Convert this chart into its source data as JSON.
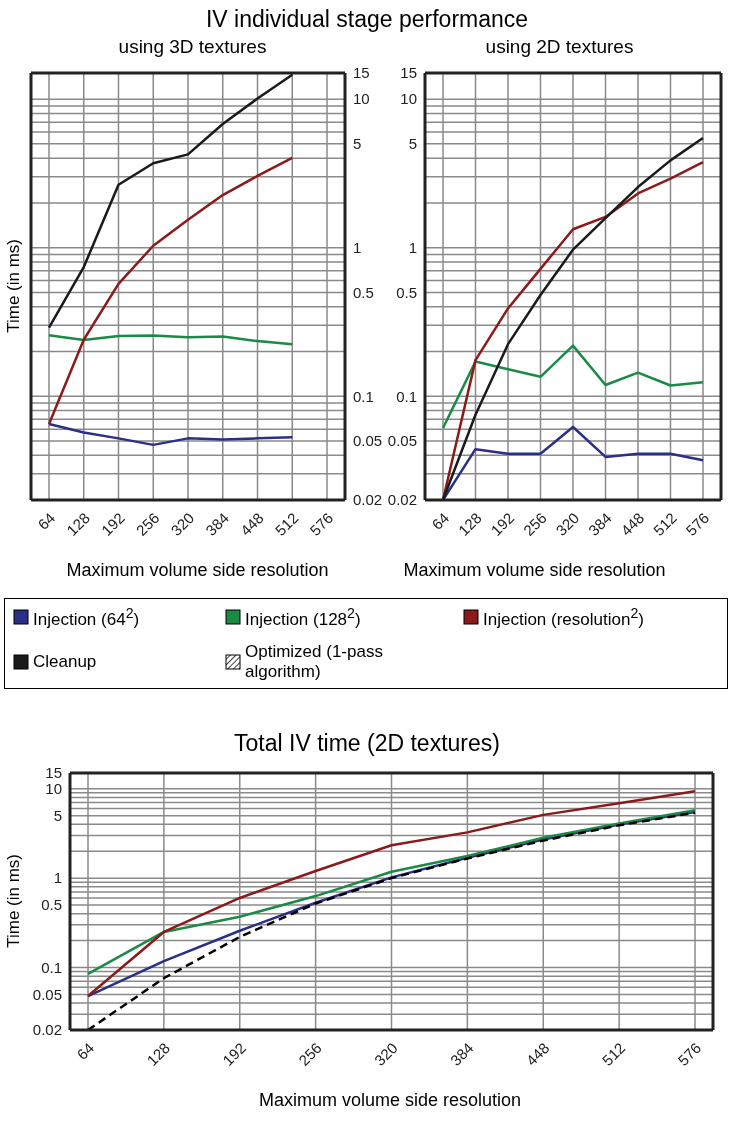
{
  "chart_data": [
    {
      "type": "line",
      "title": "IV individual stage performance",
      "subtitle": "using 3D textures",
      "xlabel": "Maximum volume side resolution",
      "ylabel": "Time (in ms)",
      "log": "y",
      "grid": true,
      "legend": "bottom",
      "categories": [
        "64",
        "128",
        "192",
        "256",
        "320",
        "384",
        "448",
        "512",
        "576"
      ],
      "ylim": [
        0.02,
        15
      ],
      "yticks": [
        0.02,
        {
          "value": 0.03,
          "label": null
        },
        {
          "value": 0.04,
          "label": null
        },
        0.05,
        {
          "value": 0.06,
          "label": null
        },
        {
          "value": 0.07,
          "label": null
        },
        {
          "value": 0.08,
          "label": null
        },
        {
          "value": 0.09,
          "label": null
        },
        0.1,
        {
          "value": 0.2,
          "label": null
        },
        {
          "value": 0.3,
          "label": null
        },
        {
          "value": 0.4,
          "label": null
        },
        0.5,
        {
          "value": 0.6,
          "label": null
        },
        {
          "value": 0.7,
          "label": null
        },
        {
          "value": 0.8,
          "label": null
        },
        {
          "value": 0.9,
          "label": null
        },
        1,
        {
          "value": 2,
          "label": null
        },
        {
          "value": 3,
          "label": null
        },
        {
          "value": 4,
          "label": null
        },
        5,
        {
          "value": 6,
          "label": null
        },
        {
          "value": 7,
          "label": null
        },
        {
          "value": 8,
          "label": null
        },
        {
          "value": 9,
          "label": null
        },
        10,
        15
      ],
      "series": [
        {
          "name": "Injection (64$^{2}$)",
          "color": "#2b2f86",
          "values": [
            0.065,
            0.057,
            0.052,
            0.047,
            0.052,
            0.051,
            0.052,
            0.053,
            null
          ]
        },
        {
          "name": "Injection (128$^{2}$)",
          "color": "#1a8a45",
          "values": [
            0.257,
            0.239,
            0.254,
            0.256,
            0.249,
            0.252,
            0.235,
            0.224,
            null
          ]
        },
        {
          "name": "Injection (resolution$^{2}$)",
          "color": "#8b1a1a",
          "values": [
            0.065,
            0.24,
            0.57,
            1.03,
            1.54,
            2.26,
            3.04,
            4.03,
            null
          ]
        },
        {
          "name": "Cleanup",
          "color": "#1a1a1a",
          "values": [
            0.29,
            0.74,
            2.65,
            3.7,
            4.25,
            6.8,
            10.1,
            14.6,
            null
          ]
        }
      ]
    },
    {
      "type": "line",
      "subtitle": "using 2D textures",
      "xlabel": "Maximum volume side resolution",
      "log": "y",
      "grid": true,
      "categories": [
        "64",
        "128",
        "192",
        "256",
        "320",
        "384",
        "448",
        "512",
        "576"
      ],
      "ylim": [
        0.02,
        15
      ],
      "yticks": [
        0.02,
        {
          "value": 0.03,
          "label": null
        },
        {
          "value": 0.04,
          "label": null
        },
        0.05,
        {
          "value": 0.06,
          "label": null
        },
        {
          "value": 0.07,
          "label": null
        },
        {
          "value": 0.08,
          "label": null
        },
        {
          "value": 0.09,
          "label": null
        },
        0.1,
        {
          "value": 0.2,
          "label": null
        },
        {
          "value": 0.3,
          "label": null
        },
        {
          "value": 0.4,
          "label": null
        },
        0.5,
        {
          "value": 0.6,
          "label": null
        },
        {
          "value": 0.7,
          "label": null
        },
        {
          "value": 0.8,
          "label": null
        },
        {
          "value": 0.9,
          "label": null
        },
        1,
        {
          "value": 2,
          "label": null
        },
        {
          "value": 3,
          "label": null
        },
        {
          "value": 4,
          "label": null
        },
        5,
        {
          "value": 6,
          "label": null
        },
        {
          "value": 7,
          "label": null
        },
        {
          "value": 8,
          "label": null
        },
        {
          "value": 9,
          "label": null
        },
        10,
        15
      ],
      "series": [
        {
          "name": "Injection (64$^{2}$)",
          "color": "#2b2f86",
          "values": [
            0.02,
            0.044,
            0.041,
            0.041,
            0.062,
            0.039,
            0.041,
            0.041,
            0.037
          ]
        },
        {
          "name": "Injection (128$^{2}$)",
          "color": "#1a8a45",
          "values": [
            0.061,
            0.171,
            0.152,
            0.135,
            0.219,
            0.119,
            0.144,
            0.118,
            0.124
          ]
        },
        {
          "name": "Injection (resolution$^{2}$)",
          "color": "#8b1a1a",
          "values": [
            0.02,
            0.175,
            0.39,
            0.72,
            1.33,
            1.61,
            2.32,
            2.92,
            3.77
          ]
        },
        {
          "name": "Cleanup",
          "color": "#1a1a1a",
          "values": [
            0.02,
            0.075,
            0.224,
            0.48,
            0.97,
            1.58,
            2.56,
            3.87,
            5.47
          ]
        }
      ]
    },
    {
      "type": "line",
      "title": "Total IV time (2D textures)",
      "xlabel": "Maximum volume side resolution",
      "ylabel": "Time (in ms)",
      "log": "y",
      "grid": true,
      "categories": [
        "64",
        "128",
        "192",
        "256",
        "320",
        "384",
        "448",
        "512",
        "576"
      ],
      "ylim": [
        0.02,
        15
      ],
      "yticks": [
        0.02,
        {
          "value": 0.03,
          "label": null
        },
        {
          "value": 0.04,
          "label": null
        },
        0.05,
        {
          "value": 0.06,
          "label": null
        },
        {
          "value": 0.07,
          "label": null
        },
        {
          "value": 0.08,
          "label": null
        },
        {
          "value": 0.09,
          "label": null
        },
        0.1,
        {
          "value": 0.2,
          "label": null
        },
        {
          "value": 0.3,
          "label": null
        },
        {
          "value": 0.4,
          "label": null
        },
        0.5,
        {
          "value": 0.6,
          "label": null
        },
        {
          "value": 0.7,
          "label": null
        },
        {
          "value": 0.8,
          "label": null
        },
        {
          "value": 0.9,
          "label": null
        },
        1,
        {
          "value": 2,
          "label": null
        },
        {
          "value": 3,
          "label": null
        },
        {
          "value": 4,
          "label": null
        },
        5,
        {
          "value": 6,
          "label": null
        },
        {
          "value": 7,
          "label": null
        },
        {
          "value": 8,
          "label": null
        },
        {
          "value": 9,
          "label": null
        },
        10,
        15
      ],
      "series": [
        {
          "name": "Injection (64$^{2}$)",
          "color": "#2b2f86",
          "values": [
            0.048,
            0.118,
            0.258,
            0.53,
            1.02,
            1.69,
            2.7,
            3.98,
            5.5
          ]
        },
        {
          "name": "Injection (128$^{2}$)",
          "color": "#1a8a45",
          "values": [
            0.085,
            0.25,
            0.37,
            0.63,
            1.18,
            1.77,
            2.83,
            4.1,
            5.75
          ]
        },
        {
          "name": "Injection (resolution$^{2}$)",
          "color": "#8b1a1a",
          "values": [
            0.048,
            0.25,
            0.6,
            1.2,
            2.33,
            3.25,
            5.1,
            6.9,
            9.4
          ]
        },
        {
          "name": "Optimized (1-pass algorithm)",
          "color": "#000000",
          "line_style": "dashed",
          "values": [
            0.02,
            0.076,
            0.22,
            0.52,
            1.0,
            1.66,
            2.63,
            3.9,
            5.4
          ]
        }
      ]
    }
  ]
}
